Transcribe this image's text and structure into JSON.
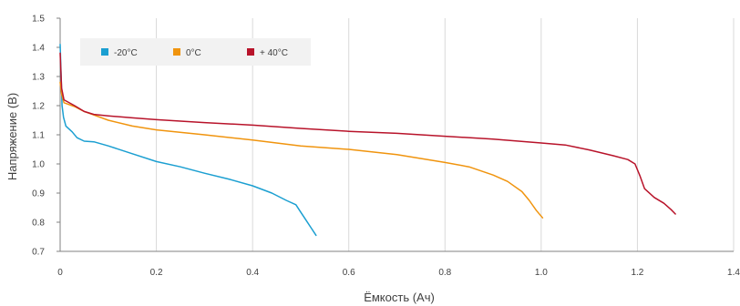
{
  "chart_data": {
    "type": "line",
    "title": "",
    "xlabel": "Ёмкость (Ач)",
    "ylabel": "Напряжение (В)",
    "xlim": [
      0,
      1.4
    ],
    "ylim": [
      0.7,
      1.5
    ],
    "x_ticks": [
      "0",
      "0.2",
      "0.4",
      "0.6",
      "0.8",
      "1.0",
      "1.2",
      "1.4"
    ],
    "y_ticks": [
      "0.7",
      "0.8",
      "0.9",
      "1.0",
      "1.1",
      "1.2",
      "1.3",
      "1.4",
      "1.5"
    ],
    "grid": "vertical",
    "legend_position": "top-left",
    "series": [
      {
        "name": "-20°C",
        "color": "#1b9fd1",
        "points": [
          [
            0.0,
            1.41
          ],
          [
            0.002,
            1.3
          ],
          [
            0.004,
            1.2
          ],
          [
            0.007,
            1.16
          ],
          [
            0.012,
            1.13
          ],
          [
            0.025,
            1.11
          ],
          [
            0.035,
            1.09
          ],
          [
            0.05,
            1.078
          ],
          [
            0.07,
            1.076
          ],
          [
            0.1,
            1.062
          ],
          [
            0.15,
            1.035
          ],
          [
            0.2,
            1.008
          ],
          [
            0.25,
            0.99
          ],
          [
            0.3,
            0.968
          ],
          [
            0.35,
            0.948
          ],
          [
            0.4,
            0.925
          ],
          [
            0.44,
            0.9
          ],
          [
            0.47,
            0.875
          ],
          [
            0.49,
            0.86
          ],
          [
            0.5,
            0.835
          ],
          [
            0.51,
            0.81
          ],
          [
            0.522,
            0.78
          ],
          [
            0.532,
            0.755
          ]
        ]
      },
      {
        "name": "0°C",
        "color": "#f0940e",
        "points": [
          [
            0.0,
            1.28
          ],
          [
            0.003,
            1.24
          ],
          [
            0.008,
            1.21
          ],
          [
            0.03,
            1.197
          ],
          [
            0.05,
            1.18
          ],
          [
            0.1,
            1.15
          ],
          [
            0.15,
            1.13
          ],
          [
            0.2,
            1.117
          ],
          [
            0.3,
            1.1
          ],
          [
            0.4,
            1.082
          ],
          [
            0.5,
            1.062
          ],
          [
            0.6,
            1.05
          ],
          [
            0.7,
            1.032
          ],
          [
            0.8,
            1.005
          ],
          [
            0.85,
            0.99
          ],
          [
            0.9,
            0.962
          ],
          [
            0.93,
            0.94
          ],
          [
            0.96,
            0.905
          ],
          [
            0.975,
            0.875
          ],
          [
            0.99,
            0.84
          ],
          [
            1.003,
            0.815
          ]
        ]
      },
      {
        "name": "+ 40°C",
        "color": "#b8132a",
        "points": [
          [
            0.0,
            1.38
          ],
          [
            0.003,
            1.26
          ],
          [
            0.008,
            1.22
          ],
          [
            0.03,
            1.2
          ],
          [
            0.05,
            1.18
          ],
          [
            0.07,
            1.17
          ],
          [
            0.1,
            1.165
          ],
          [
            0.15,
            1.158
          ],
          [
            0.2,
            1.152
          ],
          [
            0.3,
            1.142
          ],
          [
            0.4,
            1.133
          ],
          [
            0.5,
            1.122
          ],
          [
            0.6,
            1.112
          ],
          [
            0.7,
            1.105
          ],
          [
            0.8,
            1.095
          ],
          [
            0.9,
            1.085
          ],
          [
            1.0,
            1.072
          ],
          [
            1.05,
            1.065
          ],
          [
            1.1,
            1.048
          ],
          [
            1.15,
            1.028
          ],
          [
            1.18,
            1.015
          ],
          [
            1.195,
            1.0
          ],
          [
            1.205,
            0.96
          ],
          [
            1.215,
            0.915
          ],
          [
            1.235,
            0.885
          ],
          [
            1.255,
            0.865
          ],
          [
            1.27,
            0.843
          ],
          [
            1.279,
            0.828
          ]
        ]
      }
    ]
  }
}
